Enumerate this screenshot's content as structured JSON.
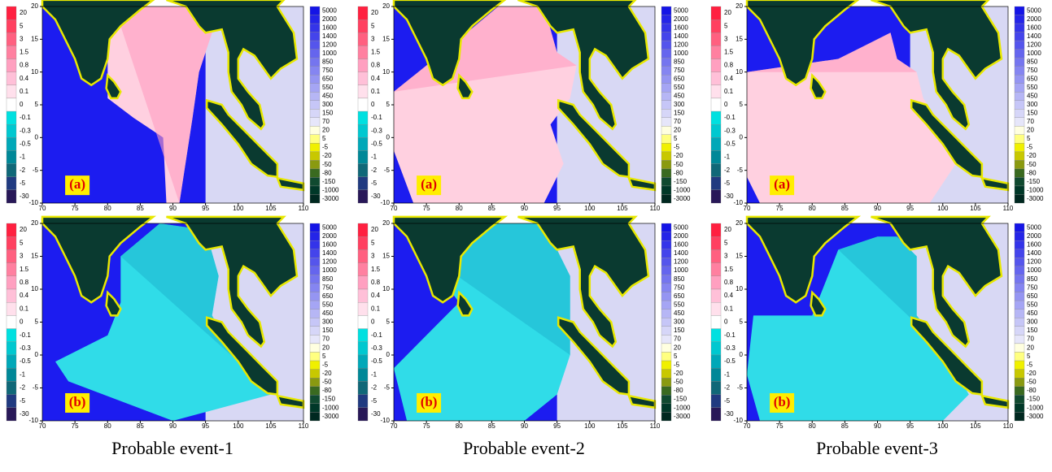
{
  "figure": {
    "panels": [
      {
        "caption": "Probable event-1",
        "labels": [
          "(a)",
          "(b)"
        ]
      },
      {
        "caption": "Probable event-2",
        "labels": [
          "(a)",
          "(b)"
        ]
      },
      {
        "caption": "Probable event-3",
        "labels": [
          "(a)",
          "(b)"
        ]
      }
    ],
    "map": {
      "xlim": [
        70,
        110
      ],
      "ylim": [
        -10,
        20
      ],
      "xticks": [
        70,
        75,
        80,
        85,
        90,
        95,
        100,
        105,
        110
      ],
      "yticks": [
        20,
        15,
        10,
        5,
        0,
        -5,
        -10
      ]
    },
    "wave_scale": [
      20,
      5,
      3,
      1.5,
      0.8,
      0.4,
      0.1,
      0,
      -0.1,
      -0.3,
      -0.5,
      -1,
      -2,
      -5,
      -30
    ],
    "depth_scale": [
      5000,
      2000,
      1600,
      1400,
      1200,
      1000,
      850,
      750,
      650,
      550,
      450,
      300,
      150,
      70,
      20,
      5,
      -5,
      -20,
      -50,
      -80,
      -150,
      -1000,
      -3000
    ]
  }
}
